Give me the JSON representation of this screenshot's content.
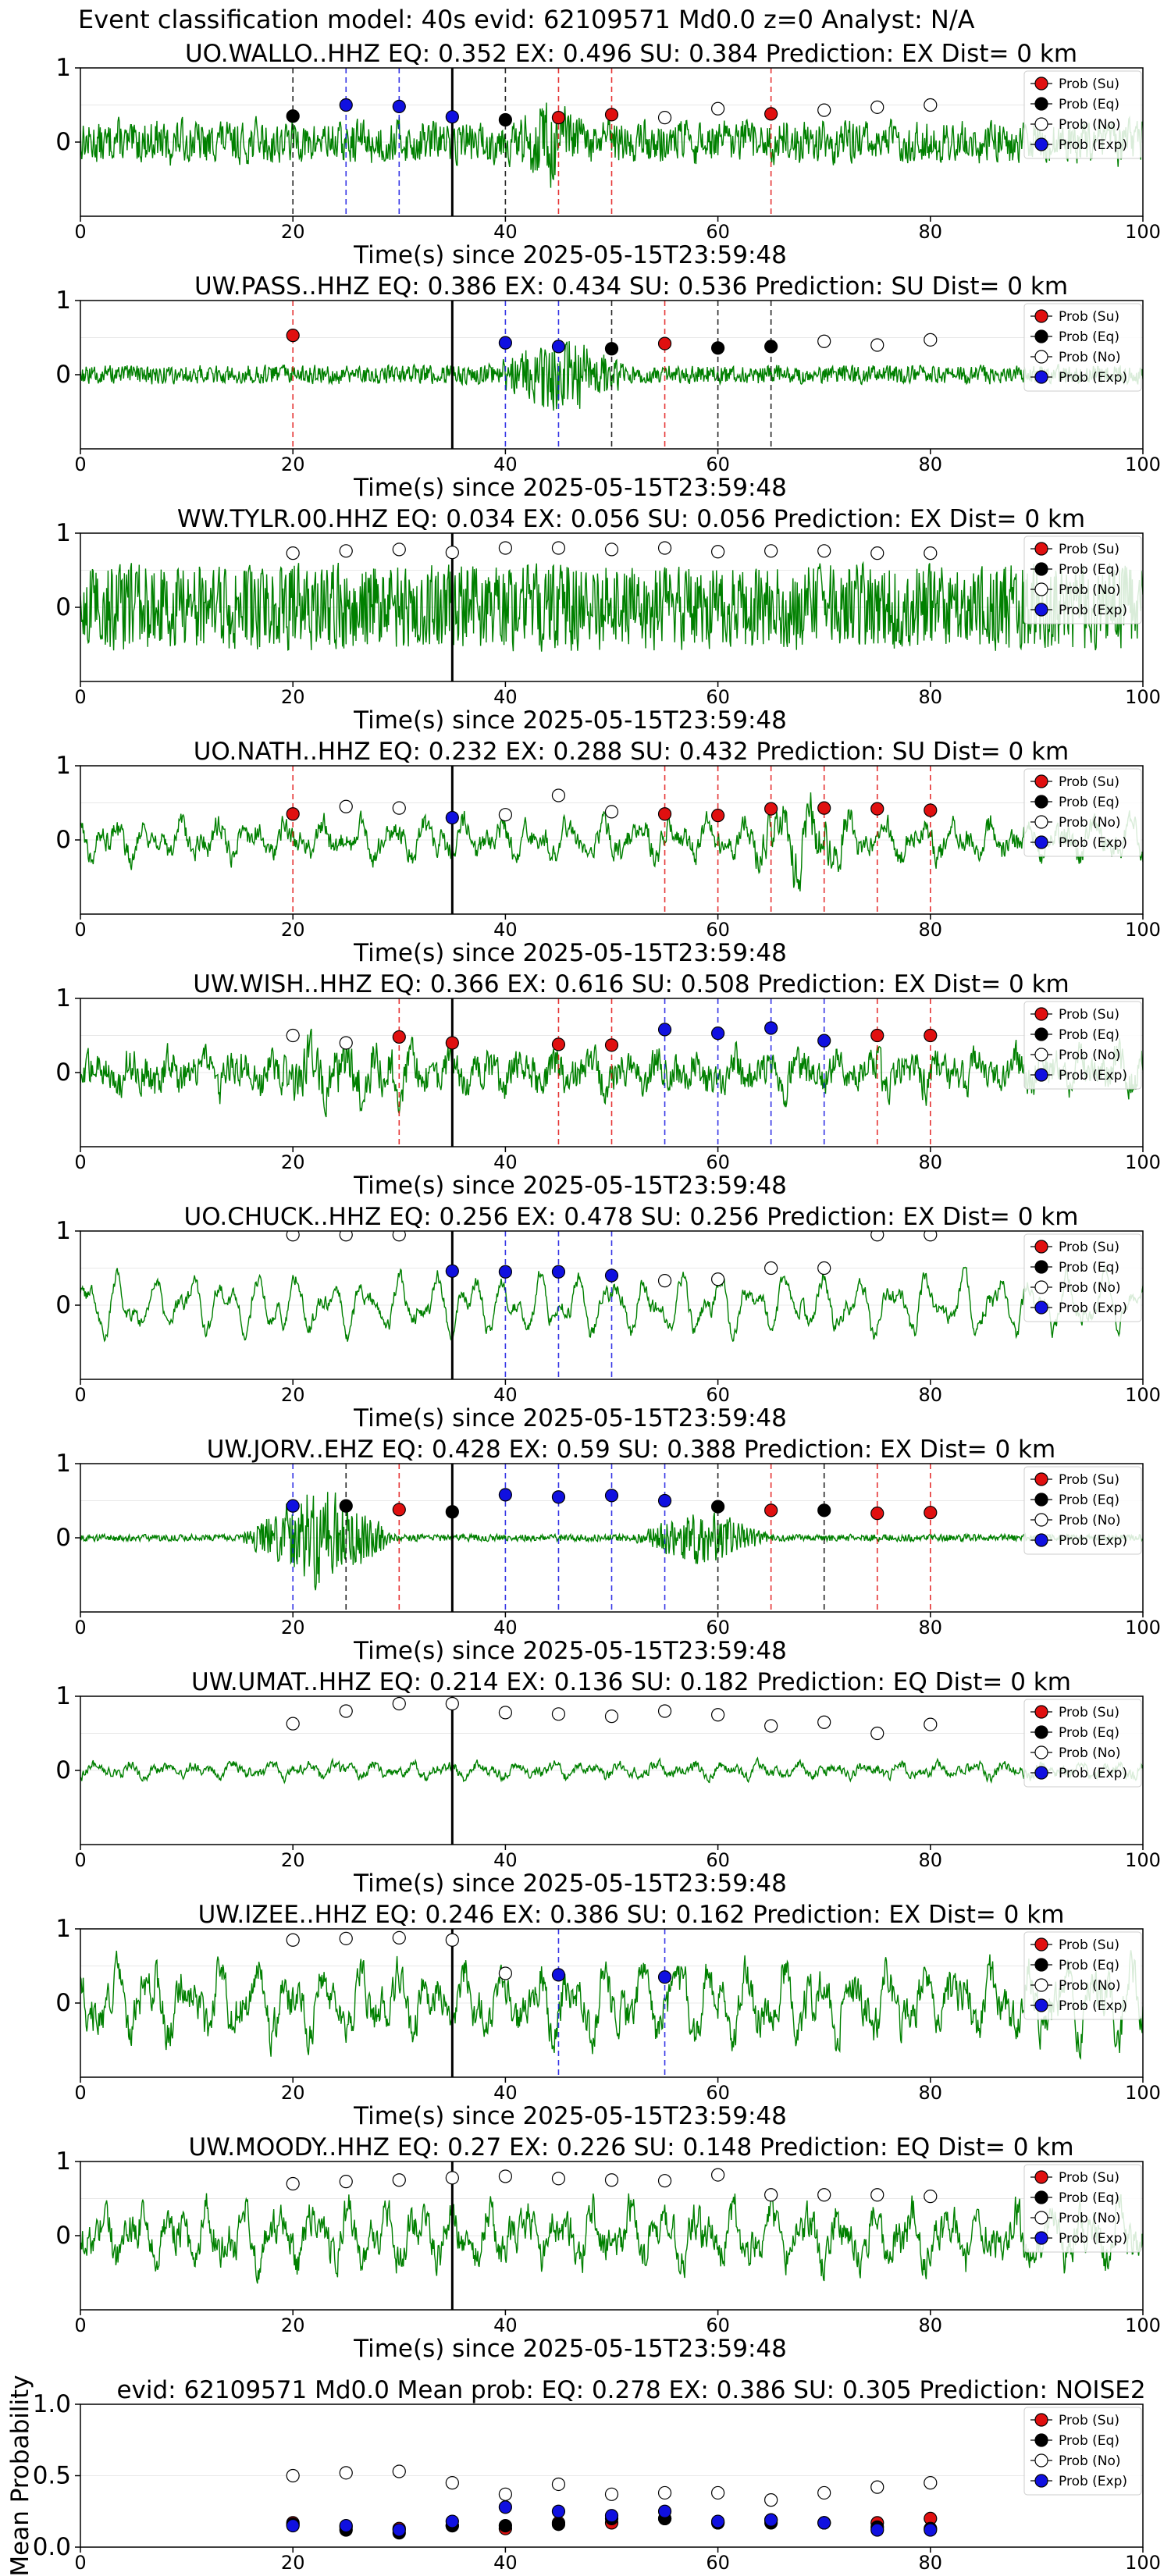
{
  "figure": {
    "suptitle": "Event classification model: 40s evid: 62109571 Md0.0 z=0 Analyst: N/A"
  },
  "legend": {
    "entries": [
      {
        "label": "Prob (Su)",
        "color": "#e01010"
      },
      {
        "label": "Prob (Eq)",
        "color": "#000000"
      },
      {
        "label": "Prob (No)",
        "color": "#ffffff"
      },
      {
        "label": "Prob (Exp)",
        "color": "#1010e0"
      }
    ]
  },
  "colors": {
    "waveform": "#008000",
    "su": "#e01010",
    "eq": "#000000",
    "no": "#ffffff",
    "exp": "#1010e0",
    "origin_line": "#000000"
  },
  "chart_data": [
    {
      "type": "line",
      "title": "UO.WALLO..HHZ   EQ: 0.352  EX: 0.496  SU: 0.384   Prediction: EX    Dist= 0 km",
      "xlabel": "Time(s) since 2025-05-15T23:59:48",
      "xlim": [
        0,
        100
      ],
      "ylim": [
        -1,
        1
      ],
      "xticks": [
        "0",
        "20",
        "40",
        "60",
        "80",
        "100"
      ],
      "yticks": [
        "0",
        "1"
      ],
      "amplitude": 0.3,
      "roughness": 0.8,
      "waveform_note": "noisy trace with burst near 40-45 s",
      "bursts": [
        [
          40,
          48,
          2.0
        ]
      ],
      "origin_time": 35,
      "markers": [
        {
          "x": 20,
          "y": 0.35,
          "cls": "eq"
        },
        {
          "x": 25,
          "y": 0.5,
          "cls": "exp"
        },
        {
          "x": 30,
          "y": 0.48,
          "cls": "exp"
        },
        {
          "x": 35,
          "y": 0.34,
          "cls": "exp"
        },
        {
          "x": 40,
          "y": 0.3,
          "cls": "eq"
        },
        {
          "x": 45,
          "y": 0.33,
          "cls": "su"
        },
        {
          "x": 50,
          "y": 0.37,
          "cls": "su"
        },
        {
          "x": 55,
          "y": 0.33,
          "cls": "no"
        },
        {
          "x": 60,
          "y": 0.45,
          "cls": "no"
        },
        {
          "x": 65,
          "y": 0.38,
          "cls": "su"
        },
        {
          "x": 70,
          "y": 0.43,
          "cls": "no"
        },
        {
          "x": 75,
          "y": 0.47,
          "cls": "no"
        },
        {
          "x": 80,
          "y": 0.5,
          "cls": "no"
        }
      ]
    },
    {
      "type": "line",
      "title": "UW.PASS..HHZ   EQ: 0.386  EX: 0.434  SU: 0.536   Prediction: SU    Dist= 0 km",
      "xlabel": "Time(s) since 2025-05-15T23:59:48",
      "xlim": [
        0,
        100
      ],
      "ylim": [
        -1,
        1
      ],
      "xticks": [
        "0",
        "20",
        "40",
        "60",
        "80",
        "100"
      ],
      "yticks": [
        "0",
        "1"
      ],
      "amplitude": 0.12,
      "roughness": 0.9,
      "bursts": [
        [
          38,
          52,
          4.5
        ]
      ],
      "origin_time": 35,
      "markers": [
        {
          "x": 20,
          "y": 0.53,
          "cls": "su"
        },
        {
          "x": 40,
          "y": 0.43,
          "cls": "exp"
        },
        {
          "x": 45,
          "y": 0.38,
          "cls": "exp"
        },
        {
          "x": 50,
          "y": 0.35,
          "cls": "eq"
        },
        {
          "x": 55,
          "y": 0.42,
          "cls": "su"
        },
        {
          "x": 60,
          "y": 0.36,
          "cls": "eq"
        },
        {
          "x": 65,
          "y": 0.38,
          "cls": "eq"
        },
        {
          "x": 70,
          "y": 0.45,
          "cls": "no"
        },
        {
          "x": 75,
          "y": 0.4,
          "cls": "no"
        },
        {
          "x": 80,
          "y": 0.47,
          "cls": "no"
        }
      ]
    },
    {
      "type": "line",
      "title": "WW.TYLR.00.HHZ   EQ: 0.034  EX: 0.056  SU: 0.056   Prediction: EX    Dist= 0 km",
      "xlabel": "Time(s) since 2025-05-15T23:59:48",
      "xlim": [
        0,
        100
      ],
      "ylim": [
        -1,
        1
      ],
      "xticks": [
        "0",
        "20",
        "40",
        "60",
        "80",
        "100"
      ],
      "yticks": [
        "0",
        "1"
      ],
      "amplitude": 0.5,
      "roughness": 1.0,
      "bursts": [],
      "origin_time": 35,
      "markers": [
        {
          "x": 20,
          "y": 0.73,
          "cls": "no"
        },
        {
          "x": 25,
          "y": 0.76,
          "cls": "no"
        },
        {
          "x": 30,
          "y": 0.78,
          "cls": "no"
        },
        {
          "x": 35,
          "y": 0.74,
          "cls": "no"
        },
        {
          "x": 40,
          "y": 0.8,
          "cls": "no"
        },
        {
          "x": 45,
          "y": 0.8,
          "cls": "no"
        },
        {
          "x": 50,
          "y": 0.78,
          "cls": "no"
        },
        {
          "x": 55,
          "y": 0.8,
          "cls": "no"
        },
        {
          "x": 60,
          "y": 0.75,
          "cls": "no"
        },
        {
          "x": 65,
          "y": 0.76,
          "cls": "no"
        },
        {
          "x": 70,
          "y": 0.76,
          "cls": "no"
        },
        {
          "x": 75,
          "y": 0.73,
          "cls": "no"
        },
        {
          "x": 80,
          "y": 0.73,
          "cls": "no"
        }
      ]
    },
    {
      "type": "line",
      "title": "UO.NATH..HHZ   EQ: 0.232  EX: 0.288  SU: 0.432   Prediction: SU    Dist= 0 km",
      "xlabel": "Time(s) since 2025-05-15T23:59:48",
      "xlim": [
        0,
        100
      ],
      "ylim": [
        -1,
        1
      ],
      "xticks": [
        "0",
        "20",
        "40",
        "60",
        "80",
        "100"
      ],
      "yticks": [
        "0",
        "1"
      ],
      "amplitude": 0.35,
      "roughness": 0.35,
      "bursts": [
        [
          62,
          74,
          2.2
        ]
      ],
      "origin_time": 35,
      "markers": [
        {
          "x": 20,
          "y": 0.35,
          "cls": "su"
        },
        {
          "x": 25,
          "y": 0.45,
          "cls": "no"
        },
        {
          "x": 30,
          "y": 0.43,
          "cls": "no"
        },
        {
          "x": 35,
          "y": 0.3,
          "cls": "exp"
        },
        {
          "x": 40,
          "y": 0.34,
          "cls": "no"
        },
        {
          "x": 45,
          "y": 0.6,
          "cls": "no"
        },
        {
          "x": 50,
          "y": 0.38,
          "cls": "no"
        },
        {
          "x": 55,
          "y": 0.35,
          "cls": "su"
        },
        {
          "x": 60,
          "y": 0.33,
          "cls": "su"
        },
        {
          "x": 65,
          "y": 0.42,
          "cls": "su"
        },
        {
          "x": 70,
          "y": 0.43,
          "cls": "su"
        },
        {
          "x": 75,
          "y": 0.42,
          "cls": "su"
        },
        {
          "x": 80,
          "y": 0.4,
          "cls": "su"
        }
      ]
    },
    {
      "type": "line",
      "title": "UW.WISH..HHZ   EQ: 0.366  EX: 0.616  SU: 0.508   Prediction: EX    Dist= 0 km",
      "xlabel": "Time(s) since 2025-05-15T23:59:48",
      "xlim": [
        0,
        100
      ],
      "ylim": [
        -1,
        1
      ],
      "xticks": [
        "0",
        "20",
        "40",
        "60",
        "80",
        "100"
      ],
      "yticks": [
        "0",
        "1"
      ],
      "amplitude": 0.4,
      "roughness": 0.5,
      "bursts": [
        [
          18,
          32,
          1.6
        ]
      ],
      "origin_time": 35,
      "markers": [
        {
          "x": 20,
          "y": 0.5,
          "cls": "no"
        },
        {
          "x": 25,
          "y": 0.4,
          "cls": "no"
        },
        {
          "x": 30,
          "y": 0.48,
          "cls": "su"
        },
        {
          "x": 35,
          "y": 0.4,
          "cls": "su"
        },
        {
          "x": 45,
          "y": 0.38,
          "cls": "su"
        },
        {
          "x": 50,
          "y": 0.37,
          "cls": "su"
        },
        {
          "x": 55,
          "y": 0.58,
          "cls": "exp"
        },
        {
          "x": 60,
          "y": 0.53,
          "cls": "exp"
        },
        {
          "x": 65,
          "y": 0.6,
          "cls": "exp"
        },
        {
          "x": 70,
          "y": 0.43,
          "cls": "exp"
        },
        {
          "x": 75,
          "y": 0.5,
          "cls": "su"
        },
        {
          "x": 80,
          "y": 0.5,
          "cls": "su"
        }
      ]
    },
    {
      "type": "line",
      "title": "UO.CHUCK..HHZ   EQ: 0.256  EX: 0.478  SU: 0.256   Prediction: EX    Dist= 0 km",
      "xlabel": "Time(s) since 2025-05-15T23:59:48",
      "xlim": [
        0,
        100
      ],
      "ylim": [
        -1,
        1
      ],
      "xticks": [
        "0",
        "20",
        "40",
        "60",
        "80",
        "100"
      ],
      "yticks": [
        "0",
        "1"
      ],
      "amplitude": 0.45,
      "roughness": 0.1,
      "bursts": [],
      "origin_time": 35,
      "markers": [
        {
          "x": 20,
          "y": 0.95,
          "cls": "no"
        },
        {
          "x": 25,
          "y": 0.95,
          "cls": "no"
        },
        {
          "x": 30,
          "y": 0.95,
          "cls": "no"
        },
        {
          "x": 35,
          "y": 0.46,
          "cls": "exp"
        },
        {
          "x": 40,
          "y": 0.45,
          "cls": "exp"
        },
        {
          "x": 45,
          "y": 0.45,
          "cls": "exp"
        },
        {
          "x": 50,
          "y": 0.4,
          "cls": "exp"
        },
        {
          "x": 55,
          "y": 0.33,
          "cls": "no"
        },
        {
          "x": 60,
          "y": 0.35,
          "cls": "no"
        },
        {
          "x": 65,
          "y": 0.5,
          "cls": "no"
        },
        {
          "x": 70,
          "y": 0.5,
          "cls": "no"
        },
        {
          "x": 75,
          "y": 0.95,
          "cls": "no"
        },
        {
          "x": 80,
          "y": 0.95,
          "cls": "no"
        }
      ]
    },
    {
      "type": "line",
      "title": "UW.JORV..EHZ   EQ: 0.428  EX: 0.59  SU: 0.388   Prediction: EX    Dist= 0 km",
      "xlabel": "Time(s) since 2025-05-15T23:59:48",
      "xlim": [
        0,
        100
      ],
      "ylim": [
        -1,
        1
      ],
      "xticks": [
        "0",
        "20",
        "40",
        "60",
        "80",
        "100"
      ],
      "yticks": [
        "0",
        "1"
      ],
      "amplitude": 0.04,
      "roughness": 1.0,
      "bursts": [
        [
          15,
          30,
          16
        ],
        [
          52,
          65,
          9
        ]
      ],
      "origin_time": 35,
      "markers": [
        {
          "x": 20,
          "y": 0.43,
          "cls": "exp"
        },
        {
          "x": 25,
          "y": 0.43,
          "cls": "eq"
        },
        {
          "x": 30,
          "y": 0.38,
          "cls": "su"
        },
        {
          "x": 35,
          "y": 0.35,
          "cls": "eq"
        },
        {
          "x": 40,
          "y": 0.58,
          "cls": "exp"
        },
        {
          "x": 45,
          "y": 0.55,
          "cls": "exp"
        },
        {
          "x": 50,
          "y": 0.57,
          "cls": "exp"
        },
        {
          "x": 55,
          "y": 0.5,
          "cls": "exp"
        },
        {
          "x": 60,
          "y": 0.42,
          "cls": "eq"
        },
        {
          "x": 65,
          "y": 0.37,
          "cls": "su"
        },
        {
          "x": 70,
          "y": 0.37,
          "cls": "eq"
        },
        {
          "x": 75,
          "y": 0.33,
          "cls": "su"
        },
        {
          "x": 80,
          "y": 0.34,
          "cls": "su"
        }
      ]
    },
    {
      "type": "line",
      "title": "UW.UMAT..HHZ   EQ: 0.214  EX: 0.136  SU: 0.182   Prediction: EQ    Dist= 0 km",
      "xlabel": "Time(s) since 2025-05-15T23:59:48",
      "xlim": [
        0,
        100
      ],
      "ylim": [
        -1,
        1
      ],
      "xticks": [
        "0",
        "20",
        "40",
        "60",
        "80",
        "100"
      ],
      "yticks": [
        "0",
        "1"
      ],
      "amplitude": 0.15,
      "roughness": 0.35,
      "bursts": [],
      "origin_time": 35,
      "markers": [
        {
          "x": 20,
          "y": 0.63,
          "cls": "no"
        },
        {
          "x": 25,
          "y": 0.8,
          "cls": "no"
        },
        {
          "x": 30,
          "y": 0.9,
          "cls": "no"
        },
        {
          "x": 35,
          "y": 0.9,
          "cls": "no"
        },
        {
          "x": 40,
          "y": 0.78,
          "cls": "no"
        },
        {
          "x": 45,
          "y": 0.76,
          "cls": "no"
        },
        {
          "x": 50,
          "y": 0.73,
          "cls": "no"
        },
        {
          "x": 55,
          "y": 0.8,
          "cls": "no"
        },
        {
          "x": 60,
          "y": 0.75,
          "cls": "no"
        },
        {
          "x": 65,
          "y": 0.6,
          "cls": "no"
        },
        {
          "x": 70,
          "y": 0.65,
          "cls": "no"
        },
        {
          "x": 75,
          "y": 0.5,
          "cls": "no"
        },
        {
          "x": 80,
          "y": 0.62,
          "cls": "no"
        }
      ]
    },
    {
      "type": "line",
      "title": "UW.IZEE..HHZ   EQ: 0.246  EX: 0.386  SU: 0.162   Prediction: EX    Dist= 0 km",
      "xlabel": "Time(s) since 2025-05-15T23:59:48",
      "xlim": [
        0,
        100
      ],
      "ylim": [
        -1,
        1
      ],
      "xticks": [
        "0",
        "20",
        "40",
        "60",
        "80",
        "100"
      ],
      "yticks": [
        "0",
        "1"
      ],
      "amplitude": 0.65,
      "roughness": 0.3,
      "bursts": [],
      "origin_time": 35,
      "markers": [
        {
          "x": 20,
          "y": 0.85,
          "cls": "no"
        },
        {
          "x": 25,
          "y": 0.87,
          "cls": "no"
        },
        {
          "x": 30,
          "y": 0.88,
          "cls": "no"
        },
        {
          "x": 35,
          "y": 0.85,
          "cls": "no"
        },
        {
          "x": 40,
          "y": 0.4,
          "cls": "no"
        },
        {
          "x": 45,
          "y": 0.38,
          "cls": "exp"
        },
        {
          "x": 55,
          "y": 0.35,
          "cls": "exp"
        }
      ]
    },
    {
      "type": "line",
      "title": "UW.MOODY..HHZ   EQ: 0.27  EX: 0.226  SU: 0.148   Prediction: EQ    Dist= 0 km",
      "xlabel": "Time(s) since 2025-05-15T23:59:48",
      "xlim": [
        0,
        100
      ],
      "ylim": [
        -1,
        1
      ],
      "xticks": [
        "0",
        "20",
        "40",
        "60",
        "80",
        "100"
      ],
      "yticks": [
        "0",
        "1"
      ],
      "amplitude": 0.55,
      "roughness": 0.35,
      "bursts": [],
      "origin_time": 35,
      "markers": [
        {
          "x": 20,
          "y": 0.7,
          "cls": "no"
        },
        {
          "x": 25,
          "y": 0.73,
          "cls": "no"
        },
        {
          "x": 30,
          "y": 0.75,
          "cls": "no"
        },
        {
          "x": 35,
          "y": 0.78,
          "cls": "no"
        },
        {
          "x": 40,
          "y": 0.8,
          "cls": "no"
        },
        {
          "x": 45,
          "y": 0.77,
          "cls": "no"
        },
        {
          "x": 50,
          "y": 0.75,
          "cls": "no"
        },
        {
          "x": 55,
          "y": 0.74,
          "cls": "no"
        },
        {
          "x": 60,
          "y": 0.82,
          "cls": "no"
        },
        {
          "x": 65,
          "y": 0.55,
          "cls": "no"
        },
        {
          "x": 70,
          "y": 0.55,
          "cls": "no"
        },
        {
          "x": 75,
          "y": 0.55,
          "cls": "no"
        },
        {
          "x": 80,
          "y": 0.53,
          "cls": "no"
        }
      ]
    },
    {
      "type": "scatter",
      "title": "evid: 62109571  Md0.0   Mean prob:   EQ: 0.278  EX: 0.386  SU: 0.305   Prediction: NOISE2",
      "ylabel": "Mean Probability",
      "xlim": [
        0,
        100
      ],
      "ylim": [
        0,
        1
      ],
      "xticks": [
        "0",
        "20",
        "40",
        "60",
        "80",
        "100"
      ],
      "yticks": [
        "0.0",
        "0.5",
        "1.0"
      ],
      "series": [
        {
          "name": "Prob (Su)",
          "cls": "su",
          "x": [
            20,
            25,
            30,
            35,
            40,
            45,
            50,
            55,
            60,
            65,
            70,
            75,
            80
          ],
          "y": [
            0.17,
            0.14,
            0.13,
            0.15,
            0.13,
            0.17,
            0.17,
            0.2,
            0.17,
            0.19,
            0.17,
            0.17,
            0.2
          ]
        },
        {
          "name": "Prob (Eq)",
          "cls": "eq",
          "x": [
            20,
            25,
            30,
            35,
            40,
            45,
            50,
            55,
            60,
            65,
            70,
            75,
            80
          ],
          "y": [
            0.16,
            0.12,
            0.1,
            0.15,
            0.15,
            0.16,
            0.2,
            0.2,
            0.17,
            0.17,
            0.17,
            0.14,
            0.13
          ]
        },
        {
          "name": "Prob (No)",
          "cls": "no",
          "x": [
            20,
            25,
            30,
            35,
            40,
            45,
            50,
            55,
            60,
            65,
            70,
            75,
            80
          ],
          "y": [
            0.5,
            0.52,
            0.53,
            0.45,
            0.37,
            0.44,
            0.37,
            0.38,
            0.38,
            0.33,
            0.38,
            0.42,
            0.45
          ]
        },
        {
          "name": "Prob (Exp)",
          "cls": "exp",
          "x": [
            20,
            25,
            30,
            35,
            40,
            45,
            50,
            55,
            60,
            65,
            70,
            75,
            80
          ],
          "y": [
            0.15,
            0.15,
            0.12,
            0.18,
            0.28,
            0.25,
            0.22,
            0.25,
            0.18,
            0.19,
            0.17,
            0.12,
            0.12
          ]
        }
      ]
    }
  ]
}
